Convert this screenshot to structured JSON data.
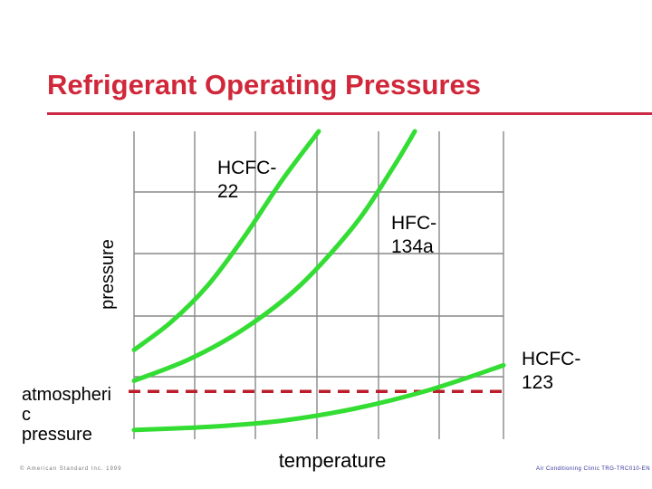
{
  "slide": {
    "title": "Refrigerant Operating Pressures",
    "footer_left": "© American Standard Inc. 1999",
    "footer_right": "Air Conditioning Clinic TRG-TRC010-EN"
  },
  "colors": {
    "title": "#d0283a",
    "title_rule": "#cc2a45",
    "grid": "#888888",
    "curve": "#33dd33",
    "atmospheric_line": "#bb1d2a",
    "text": "#000000"
  },
  "chart_data": {
    "type": "line",
    "title": "Refrigerant Operating Pressures",
    "xlabel": "temperature",
    "ylabel": "pressure",
    "x_ticks": [],
    "y_ticks": [],
    "grid": true,
    "xlim": [
      0,
      10
    ],
    "ylim": [
      0,
      10
    ],
    "series": [
      {
        "name": "HCFC-22",
        "color": "#33dd33",
        "x": [
          0.0,
          1.0,
          2.0,
          3.0,
          4.0,
          5.0
        ],
        "y": [
          2.9,
          3.8,
          5.0,
          6.6,
          8.4,
          10.0
        ]
      },
      {
        "name": "HFC-134a",
        "color": "#33dd33",
        "x": [
          0.0,
          1.5,
          3.0,
          4.5,
          6.0,
          7.0,
          7.6
        ],
        "y": [
          1.9,
          2.6,
          3.6,
          5.0,
          7.0,
          8.8,
          10.0
        ]
      },
      {
        "name": "HCFC-123",
        "color": "#33dd33",
        "x": [
          0.0,
          2.0,
          4.0,
          6.0,
          8.0,
          10.0
        ],
        "y": [
          0.3,
          0.4,
          0.6,
          1.0,
          1.6,
          2.4
        ]
      }
    ],
    "reference_lines": [
      {
        "label": "atmospheric pressure",
        "label_text": "atmospheri\nc\npressure",
        "y": 1.55,
        "style": "dashed",
        "color": "#bb1d2a"
      }
    ],
    "series_labels": [
      {
        "series": "HCFC-22",
        "lines": [
          "HCFC-",
          "22"
        ]
      },
      {
        "series": "HFC-134a",
        "lines": [
          "HFC-",
          "134a"
        ]
      },
      {
        "series": "HCFC-123",
        "lines": [
          "HCFC-",
          "123"
        ]
      }
    ]
  }
}
